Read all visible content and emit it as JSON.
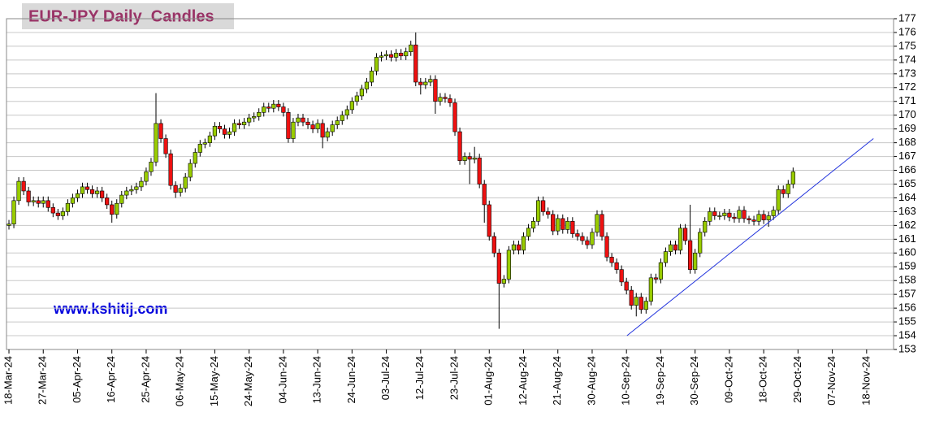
{
  "chart_data": {
    "type": "candlestick",
    "title": "EUR-JPY Daily  Candles",
    "watermark": "www.kshitij.com",
    "categories": [
      "18-Mar-24",
      null,
      null,
      null,
      null,
      null,
      null,
      "27-Mar-24",
      null,
      null,
      null,
      null,
      null,
      null,
      "05-Apr-24",
      null,
      null,
      null,
      null,
      null,
      null,
      "16-Apr-24",
      null,
      null,
      null,
      null,
      null,
      null,
      "25-Apr-24",
      null,
      null,
      null,
      null,
      null,
      null,
      "06-May-24",
      null,
      null,
      null,
      null,
      null,
      null,
      "15-May-24",
      null,
      null,
      null,
      null,
      null,
      null,
      "24-May-24",
      null,
      null,
      null,
      null,
      null,
      null,
      "04-Jun-24",
      null,
      null,
      null,
      null,
      null,
      null,
      "13-Jun-24",
      null,
      null,
      null,
      null,
      null,
      null,
      "24-Jun-24",
      null,
      null,
      null,
      null,
      null,
      null,
      "03-Jul-24",
      null,
      null,
      null,
      null,
      null,
      null,
      "12-Jul-24",
      null,
      null,
      null,
      null,
      null,
      null,
      "23-Jul-24",
      null,
      null,
      null,
      null,
      null,
      null,
      "01-Aug-24",
      null,
      null,
      null,
      null,
      null,
      null,
      "12-Aug-24",
      null,
      null,
      null,
      null,
      null,
      null,
      "21-Aug-24",
      null,
      null,
      null,
      null,
      null,
      null,
      "30-Aug-24",
      null,
      null,
      null,
      null,
      null,
      null,
      "10-Sep-24",
      null,
      null,
      null,
      null,
      null,
      null,
      "19-Sep-24",
      null,
      null,
      null,
      null,
      null,
      null,
      "30-Sep-24",
      null,
      null,
      null,
      null,
      null,
      null,
      "09-Oct-24",
      null,
      null,
      null,
      null,
      null,
      null,
      "18-Oct-24",
      null,
      null,
      null,
      null,
      null,
      null,
      "29-Oct-24",
      null,
      null,
      null,
      null,
      null,
      null,
      "07-Nov-24",
      null,
      null,
      null,
      null,
      null,
      null,
      "18-Nov-24",
      null,
      null,
      null,
      null,
      null
    ],
    "open": [
      162.0,
      162.1,
      163.8,
      165.2,
      164.5,
      163.7,
      163.8,
      163.6,
      163.8,
      163.3,
      162.9,
      162.7,
      163.0,
      163.6,
      164.0,
      164.3,
      164.8,
      164.6,
      164.3,
      164.5,
      164.0,
      163.5,
      162.8,
      163.6,
      164.2,
      164.5,
      164.6,
      164.8,
      165.2,
      165.9,
      166.6,
      169.4,
      168.3,
      167.2,
      164.9,
      164.4,
      164.7,
      165.5,
      166.5,
      167.3,
      167.9,
      168.0,
      168.5,
      169.2,
      169.0,
      168.6,
      168.8,
      169.4,
      169.3,
      169.5,
      169.8,
      169.9,
      170.2,
      170.6,
      170.5,
      170.8,
      170.6,
      170.2,
      168.3,
      169.5,
      169.8,
      169.5,
      169.3,
      169.0,
      169.4,
      168.4,
      168.8,
      169.3,
      169.6,
      170.0,
      170.4,
      171.0,
      171.4,
      171.9,
      172.4,
      173.2,
      174.2,
      174.3,
      174.4,
      174.2,
      174.5,
      174.3,
      174.6,
      175.1,
      172.4,
      172.2,
      172.4,
      172.6,
      171.0,
      171.3,
      171.2,
      170.9,
      168.8,
      166.7,
      167.0,
      166.8,
      166.9,
      165.0,
      163.5,
      161.2,
      160.0,
      157.8,
      158.1,
      160.2,
      160.6,
      160.2,
      161.2,
      161.8,
      162.3,
      163.8,
      163.0,
      162.8,
      161.6,
      162.5,
      161.7,
      162.3,
      161.4,
      161.2,
      160.9,
      160.6,
      161.5,
      162.8,
      161.2,
      159.7,
      159.3,
      158.8,
      157.9,
      157.3,
      156.2,
      156.8,
      155.9,
      156.5,
      158.2,
      158.1,
      159.3,
      160.1,
      160.6,
      160.2,
      161.8,
      160.9,
      158.8,
      160.0,
      161.5,
      162.3,
      163.0,
      162.7,
      162.7,
      162.9,
      162.6,
      162.5,
      163.1,
      162.5,
      162.4,
      162.3,
      162.8,
      162.4,
      162.7,
      163.1,
      164.6,
      164.3,
      165.0,
      null,
      null,
      null,
      null,
      null,
      null,
      null,
      null,
      null,
      null,
      null,
      null,
      null,
      null,
      null,
      null,
      null,
      null,
      null,
      null
    ],
    "high": [
      162.4,
      164.1,
      165.5,
      165.5,
      164.8,
      164.1,
      164.1,
      164.1,
      164.1,
      163.6,
      163.2,
      163.3,
      163.9,
      164.3,
      164.6,
      165.1,
      165.1,
      164.9,
      164.8,
      164.8,
      164.3,
      163.8,
      163.9,
      164.5,
      164.8,
      164.9,
      165.1,
      165.5,
      166.2,
      166.9,
      171.6,
      169.7,
      168.6,
      167.5,
      165.2,
      165.0,
      165.8,
      166.8,
      167.6,
      168.2,
      168.3,
      168.8,
      169.5,
      169.5,
      169.3,
      169.1,
      169.7,
      169.7,
      169.8,
      170.1,
      170.2,
      170.5,
      170.9,
      170.9,
      171.1,
      171.1,
      170.9,
      170.5,
      169.8,
      170.1,
      170.1,
      169.8,
      169.6,
      169.7,
      169.7,
      169.1,
      169.6,
      169.9,
      170.3,
      170.7,
      171.3,
      171.7,
      172.2,
      172.7,
      173.5,
      174.5,
      174.6,
      174.7,
      174.7,
      174.8,
      174.8,
      174.9,
      175.4,
      176.0,
      172.7,
      172.7,
      172.9,
      172.9,
      171.6,
      171.6,
      171.5,
      171.2,
      169.1,
      167.3,
      167.3,
      167.7,
      167.2,
      165.3,
      163.8,
      161.5,
      160.3,
      158.4,
      160.5,
      160.9,
      160.9,
      161.5,
      162.1,
      162.6,
      164.1,
      164.1,
      163.3,
      163.1,
      162.8,
      162.8,
      162.6,
      162.6,
      161.7,
      161.5,
      161.2,
      161.8,
      163.1,
      163.1,
      161.5,
      160.0,
      159.6,
      159.1,
      158.2,
      157.6,
      157.1,
      157.1,
      156.8,
      158.5,
      158.5,
      159.6,
      160.4,
      160.9,
      160.9,
      162.1,
      162.1,
      163.5,
      160.3,
      161.8,
      162.6,
      163.3,
      163.3,
      163.0,
      163.2,
      163.2,
      162.9,
      163.4,
      163.4,
      162.7,
      162.7,
      163.1,
      163.1,
      163.0,
      163.4,
      164.9,
      164.9,
      165.3,
      166.2,
      null,
      null,
      null,
      null,
      null,
      null,
      null,
      null,
      null,
      null,
      null,
      null,
      null,
      null,
      null,
      null,
      null,
      null,
      null,
      null
    ],
    "low": [
      161.7,
      161.8,
      163.5,
      164.2,
      163.4,
      163.4,
      163.3,
      163.3,
      163.0,
      162.6,
      162.4,
      162.4,
      162.7,
      163.3,
      163.7,
      164.0,
      164.3,
      164.0,
      164.0,
      163.7,
      163.2,
      162.2,
      162.5,
      163.3,
      163.9,
      164.2,
      164.3,
      164.5,
      164.9,
      165.6,
      166.3,
      168.0,
      166.9,
      164.6,
      164.0,
      164.1,
      164.4,
      165.2,
      166.2,
      167.0,
      167.6,
      167.7,
      168.2,
      168.7,
      168.3,
      168.3,
      168.5,
      169.0,
      169.0,
      169.2,
      169.5,
      169.6,
      169.9,
      170.2,
      170.2,
      170.3,
      169.9,
      168.0,
      168.0,
      169.2,
      169.2,
      169.0,
      168.7,
      168.7,
      167.6,
      168.1,
      168.5,
      169.0,
      169.3,
      169.7,
      170.1,
      170.7,
      171.1,
      171.6,
      172.1,
      172.9,
      173.9,
      174.0,
      173.9,
      173.9,
      174.0,
      174.0,
      174.3,
      172.1,
      171.5,
      171.9,
      172.1,
      170.1,
      170.7,
      170.9,
      170.6,
      168.5,
      166.4,
      166.4,
      165.0,
      166.5,
      164.7,
      162.2,
      160.9,
      159.7,
      154.5,
      157.5,
      157.8,
      159.9,
      159.9,
      159.9,
      160.9,
      161.5,
      162.0,
      162.7,
      162.5,
      161.3,
      161.3,
      161.4,
      161.4,
      161.1,
      160.9,
      160.6,
      160.3,
      160.3,
      161.2,
      160.9,
      159.4,
      159.0,
      158.5,
      157.6,
      157.0,
      155.9,
      155.4,
      155.6,
      155.6,
      156.2,
      157.8,
      157.8,
      159.0,
      159.8,
      159.9,
      159.9,
      160.6,
      158.5,
      158.5,
      159.7,
      161.2,
      162.0,
      162.4,
      162.4,
      162.4,
      162.3,
      162.2,
      162.2,
      162.2,
      162.1,
      162.0,
      162.0,
      162.1,
      161.9,
      162.4,
      162.8,
      164.0,
      164.0,
      164.7,
      null,
      null,
      null,
      null,
      null,
      null,
      null,
      null,
      null,
      null,
      null,
      null,
      null,
      null,
      null,
      null,
      null,
      null,
      null,
      null
    ],
    "close": [
      162.1,
      163.8,
      165.2,
      164.5,
      163.7,
      163.8,
      163.6,
      163.8,
      163.3,
      162.9,
      162.7,
      163.0,
      163.6,
      164.0,
      164.3,
      164.8,
      164.6,
      164.3,
      164.5,
      164.0,
      163.5,
      162.8,
      163.6,
      164.2,
      164.5,
      164.6,
      164.8,
      165.2,
      165.9,
      166.6,
      169.4,
      168.3,
      167.2,
      164.9,
      164.4,
      164.7,
      165.5,
      166.5,
      167.3,
      167.9,
      168.0,
      168.5,
      169.2,
      169.0,
      168.6,
      168.8,
      169.4,
      169.3,
      169.5,
      169.8,
      169.9,
      170.2,
      170.6,
      170.5,
      170.8,
      170.6,
      170.2,
      168.3,
      169.5,
      169.8,
      169.5,
      169.3,
      169.0,
      169.4,
      168.4,
      168.8,
      169.3,
      169.6,
      170.0,
      170.4,
      171.0,
      171.4,
      171.9,
      172.4,
      173.2,
      174.2,
      174.3,
      174.4,
      174.2,
      174.5,
      174.3,
      174.6,
      175.1,
      172.4,
      172.2,
      172.4,
      172.6,
      171.0,
      171.3,
      171.2,
      170.9,
      168.8,
      166.7,
      167.0,
      166.8,
      166.9,
      165.0,
      163.5,
      161.2,
      160.0,
      157.8,
      158.1,
      160.2,
      160.6,
      160.2,
      161.2,
      161.8,
      162.3,
      163.8,
      163.0,
      162.8,
      161.6,
      162.5,
      161.7,
      162.3,
      161.4,
      161.2,
      160.9,
      160.6,
      161.5,
      162.8,
      161.2,
      159.7,
      159.3,
      158.8,
      157.9,
      157.3,
      156.2,
      156.8,
      155.9,
      156.5,
      158.2,
      158.1,
      159.3,
      160.1,
      160.6,
      160.2,
      161.8,
      160.9,
      158.8,
      160.0,
      161.5,
      162.3,
      163.0,
      162.7,
      162.7,
      162.9,
      162.6,
      162.5,
      163.1,
      162.5,
      162.4,
      162.3,
      162.8,
      162.4,
      162.7,
      163.1,
      164.6,
      164.3,
      165.0,
      165.9,
      null,
      null,
      null,
      null,
      null,
      null,
      null,
      null,
      null,
      null,
      null,
      null,
      null,
      null,
      null,
      null,
      null,
      null,
      null,
      null
    ],
    "up_color": "#99cc00",
    "down_color": "#ee1111",
    "ylim": [
      153,
      177
    ],
    "yticks": [
      153,
      154,
      155,
      156,
      157,
      158,
      159,
      160,
      161,
      162,
      163,
      164,
      165,
      166,
      167,
      168,
      169,
      170,
      171,
      172,
      173,
      174,
      175,
      176,
      177
    ],
    "grid": true,
    "trendline": {
      "x": [
        126.1,
        176.4
      ],
      "y": [
        154.0,
        168.3
      ],
      "color": "#2233dd"
    }
  }
}
